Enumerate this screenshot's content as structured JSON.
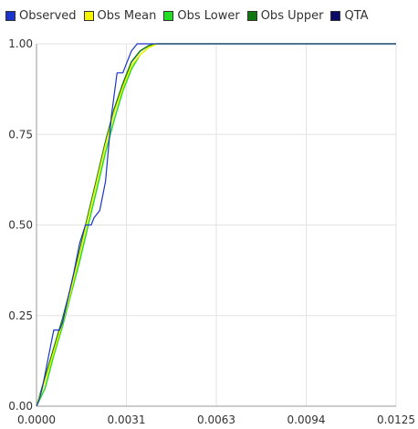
{
  "legend": [
    {
      "label": "Observed",
      "color": "#1a33cc"
    },
    {
      "label": "Obs Mean",
      "color": "#f5f500"
    },
    {
      "label": "Obs Lower",
      "color": "#22dd22"
    },
    {
      "label": "Obs Upper",
      "color": "#117711"
    },
    {
      "label": "QTA",
      "color": "#0a0a66"
    }
  ],
  "chart_data": {
    "type": "line",
    "title": "",
    "xlabel": "",
    "ylabel": "",
    "xlim": [
      0,
      0.0125
    ],
    "ylim": [
      0,
      1
    ],
    "grid": true,
    "legend_position": "top",
    "x_ticks": [
      "0.0000",
      "0.0031",
      "0.0063",
      "0.0094",
      "0.0125"
    ],
    "y_ticks": [
      "0.00",
      "0.25",
      "0.50",
      "0.75",
      "1.00"
    ],
    "series": [
      {
        "name": "Observed",
        "color": "#1a33cc",
        "x": [
          0,
          0.0001,
          0.0002,
          0.0003,
          0.0004,
          0.0006,
          0.0007,
          0.0008,
          0.0009,
          0.0011,
          0.0013,
          0.0015,
          0.0017,
          0.0018,
          0.0019,
          0.002,
          0.0022,
          0.0024,
          0.0026,
          0.0028,
          0.0029,
          0.003,
          0.0031,
          0.0033,
          0.0035,
          0.0037,
          0.0125
        ],
        "y": [
          0,
          0.02,
          0.05,
          0.09,
          0.13,
          0.21,
          0.21,
          0.21,
          0.23,
          0.3,
          0.37,
          0.45,
          0.5,
          0.5,
          0.5,
          0.52,
          0.54,
          0.62,
          0.8,
          0.92,
          0.92,
          0.92,
          0.94,
          0.98,
          1,
          1,
          1
        ]
      },
      {
        "name": "Obs Mean",
        "color": "#f5f500",
        "x": [
          0,
          0.0003,
          0.0006,
          0.0009,
          0.0012,
          0.0015,
          0.0018,
          0.0021,
          0.0024,
          0.0027,
          0.003,
          0.0033,
          0.0036,
          0.0039,
          0.0042,
          0.0045,
          0.0125
        ],
        "y": [
          0,
          0.07,
          0.15,
          0.23,
          0.32,
          0.42,
          0.52,
          0.62,
          0.72,
          0.81,
          0.88,
          0.94,
          0.97,
          0.99,
          1,
          1,
          1
        ]
      },
      {
        "name": "Obs Lower",
        "color": "#22dd22",
        "x": [
          0,
          0.0003,
          0.0006,
          0.0009,
          0.0012,
          0.0015,
          0.0018,
          0.0021,
          0.0024,
          0.0027,
          0.003,
          0.0033,
          0.0036,
          0.0039,
          0.0042,
          0.0045,
          0.0125
        ],
        "y": [
          0,
          0.05,
          0.14,
          0.22,
          0.31,
          0.4,
          0.5,
          0.6,
          0.7,
          0.79,
          0.87,
          0.93,
          0.97,
          0.99,
          1,
          1,
          1
        ]
      },
      {
        "name": "Obs Upper",
        "color": "#117711",
        "x": [
          0,
          0.0003,
          0.0006,
          0.0009,
          0.0012,
          0.0015,
          0.0018,
          0.0021,
          0.0024,
          0.0027,
          0.003,
          0.0033,
          0.0036,
          0.0039,
          0.0042,
          0.0045,
          0.0125
        ],
        "y": [
          0,
          0.08,
          0.16,
          0.24,
          0.33,
          0.43,
          0.53,
          0.63,
          0.73,
          0.82,
          0.89,
          0.95,
          0.98,
          0.995,
          1,
          1,
          1
        ]
      },
      {
        "name": "QTA",
        "color": "#0a0a66",
        "x": [],
        "y": []
      }
    ]
  }
}
